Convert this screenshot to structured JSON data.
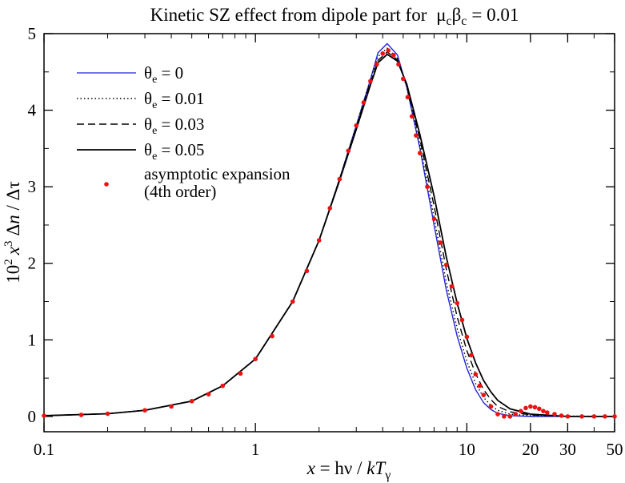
{
  "chart_data": {
    "type": "line",
    "title": "Kinetic SZ effect from dipole part for  μᴄβᴄ = 0.01",
    "title_parts": {
      "main": "Kinetic SZ effect from dipole part for",
      "mu": "μ",
      "beta": "β",
      "sub": "c",
      "rhs": "= 0.01"
    },
    "xlabel": "x = hν / kTγ",
    "xlabel_parts": {
      "x": "x",
      "eq": " = hν / ",
      "k": "k",
      "T": "T",
      "sub": "γ"
    },
    "ylabel": "10² x³ Δn / Δτ",
    "ylabel_parts": {
      "base": "10",
      "sup1": "2",
      "x": "x",
      "sup2": "3",
      "dn": "Δ",
      "n": "n",
      "rest": " / Δτ"
    },
    "x_scale": "log",
    "xlim": [
      0.1,
      50
    ],
    "ylim": [
      -0.2,
      5
    ],
    "x_ticks": [
      {
        "value": 0.1,
        "label": "0.1"
      },
      {
        "value": 1,
        "label": "1"
      },
      {
        "value": 10,
        "label": "10"
      },
      {
        "value": 20,
        "label": "20"
      },
      {
        "value": 30,
        "label": "30"
      },
      {
        "value": 50,
        "label": "50"
      }
    ],
    "y_ticks": [
      {
        "value": 0,
        "label": "0"
      },
      {
        "value": 1,
        "label": "1"
      },
      {
        "value": 2,
        "label": "2"
      },
      {
        "value": 3,
        "label": "3"
      },
      {
        "value": 4,
        "label": "4"
      },
      {
        "value": 5,
        "label": "5"
      }
    ],
    "grid": false,
    "legend_position": "top-left",
    "series": [
      {
        "label": "θe = 0",
        "label_parts": {
          "sym": "θ",
          "sub": "e",
          "rhs": " = 0"
        },
        "style": "solid",
        "color": "#2222dd",
        "points": [
          [
            0.1,
            0.01
          ],
          [
            0.2,
            0.035
          ],
          [
            0.3,
            0.08
          ],
          [
            0.5,
            0.2
          ],
          [
            0.7,
            0.4
          ],
          [
            1,
            0.75
          ],
          [
            1.5,
            1.5
          ],
          [
            2,
            2.3
          ],
          [
            2.5,
            3.1
          ],
          [
            3,
            3.8
          ],
          [
            3.5,
            4.4
          ],
          [
            3.8,
            4.75
          ],
          [
            4.2,
            4.87
          ],
          [
            4.7,
            4.72
          ],
          [
            5.2,
            4.3
          ],
          [
            6,
            3.5
          ],
          [
            7,
            2.5
          ],
          [
            8,
            1.65
          ],
          [
            9,
            1.05
          ],
          [
            10,
            0.63
          ],
          [
            11,
            0.35
          ],
          [
            12,
            0.18
          ],
          [
            13,
            0.09
          ],
          [
            14,
            0.04
          ],
          [
            16,
            0.01
          ],
          [
            20,
            0.0
          ],
          [
            50,
            0.0
          ]
        ]
      },
      {
        "label": "θe = 0.01",
        "label_parts": {
          "sym": "θ",
          "sub": "e",
          "rhs": " = 0.01"
        },
        "style": "dotted",
        "color": "#000000",
        "points": [
          [
            0.1,
            0.01
          ],
          [
            0.2,
            0.035
          ],
          [
            0.3,
            0.08
          ],
          [
            0.5,
            0.2
          ],
          [
            0.7,
            0.4
          ],
          [
            1,
            0.75
          ],
          [
            1.5,
            1.5
          ],
          [
            2,
            2.3
          ],
          [
            2.5,
            3.1
          ],
          [
            3,
            3.8
          ],
          [
            3.5,
            4.4
          ],
          [
            3.8,
            4.7
          ],
          [
            4.2,
            4.81
          ],
          [
            4.7,
            4.68
          ],
          [
            5.2,
            4.3
          ],
          [
            6,
            3.55
          ],
          [
            7,
            2.6
          ],
          [
            8,
            1.75
          ],
          [
            9,
            1.15
          ],
          [
            10,
            0.72
          ],
          [
            11,
            0.43
          ],
          [
            12,
            0.25
          ],
          [
            13,
            0.14
          ],
          [
            14,
            0.08
          ],
          [
            16,
            0.03
          ],
          [
            20,
            0.01
          ],
          [
            50,
            0.0
          ]
        ]
      },
      {
        "label": "θe = 0.03",
        "label_parts": {
          "sym": "θ",
          "sub": "e",
          "rhs": " = 0.03"
        },
        "style": "dashed",
        "color": "#000000",
        "points": [
          [
            0.1,
            0.01
          ],
          [
            0.2,
            0.035
          ],
          [
            0.3,
            0.08
          ],
          [
            0.5,
            0.2
          ],
          [
            0.7,
            0.4
          ],
          [
            1,
            0.75
          ],
          [
            1.5,
            1.5
          ],
          [
            2,
            2.3
          ],
          [
            2.5,
            3.1
          ],
          [
            3,
            3.78
          ],
          [
            3.5,
            4.36
          ],
          [
            3.8,
            4.65
          ],
          [
            4.2,
            4.76
          ],
          [
            4.7,
            4.66
          ],
          [
            5.2,
            4.32
          ],
          [
            6,
            3.62
          ],
          [
            7,
            2.75
          ],
          [
            8,
            1.92
          ],
          [
            9,
            1.3
          ],
          [
            10,
            0.86
          ],
          [
            11,
            0.56
          ],
          [
            12,
            0.35
          ],
          [
            13,
            0.22
          ],
          [
            14,
            0.13
          ],
          [
            16,
            0.06
          ],
          [
            20,
            0.02
          ],
          [
            30,
            0.0
          ],
          [
            50,
            0.0
          ]
        ]
      },
      {
        "label": "θe = 0.05",
        "label_parts": {
          "sym": "θ",
          "sub": "e",
          "rhs": " = 0.05"
        },
        "style": "solid",
        "color": "#000000",
        "points": [
          [
            0.1,
            0.01
          ],
          [
            0.2,
            0.035
          ],
          [
            0.3,
            0.08
          ],
          [
            0.5,
            0.2
          ],
          [
            0.7,
            0.4
          ],
          [
            1,
            0.75
          ],
          [
            1.5,
            1.5
          ],
          [
            2,
            2.3
          ],
          [
            2.5,
            3.08
          ],
          [
            3,
            3.75
          ],
          [
            3.5,
            4.33
          ],
          [
            3.8,
            4.62
          ],
          [
            4.2,
            4.73
          ],
          [
            4.7,
            4.64
          ],
          [
            5.2,
            4.34
          ],
          [
            6,
            3.68
          ],
          [
            7,
            2.88
          ],
          [
            8,
            2.08
          ],
          [
            9,
            1.48
          ],
          [
            10,
            1.02
          ],
          [
            11,
            0.7
          ],
          [
            12,
            0.47
          ],
          [
            13,
            0.32
          ],
          [
            14,
            0.21
          ],
          [
            16,
            0.1
          ],
          [
            20,
            0.03
          ],
          [
            30,
            0.0
          ],
          [
            50,
            0.0
          ]
        ]
      },
      {
        "label": "asymptotic expansion (4th order)",
        "label_lines": [
          "asymptotic expansion",
          "(4th order)"
        ],
        "style": "markers",
        "color": "#ee1111",
        "points": [
          [
            0.1,
            0.01
          ],
          [
            0.15,
            0.02
          ],
          [
            0.2,
            0.035
          ],
          [
            0.3,
            0.08
          ],
          [
            0.4,
            0.13
          ],
          [
            0.5,
            0.2
          ],
          [
            0.6,
            0.29
          ],
          [
            0.7,
            0.4
          ],
          [
            0.85,
            0.56
          ],
          [
            1,
            0.75
          ],
          [
            1.2,
            1.05
          ],
          [
            1.5,
            1.5
          ],
          [
            1.75,
            1.9
          ],
          [
            2,
            2.3
          ],
          [
            2.25,
            2.72
          ],
          [
            2.5,
            3.1
          ],
          [
            2.75,
            3.47
          ],
          [
            3,
            3.8
          ],
          [
            3.25,
            4.1
          ],
          [
            3.5,
            4.38
          ],
          [
            3.75,
            4.6
          ],
          [
            4,
            4.74
          ],
          [
            4.25,
            4.78
          ],
          [
            4.5,
            4.72
          ],
          [
            4.75,
            4.6
          ],
          [
            5,
            4.41
          ],
          [
            5.25,
            4.17
          ],
          [
            5.5,
            3.92
          ],
          [
            5.75,
            3.67
          ],
          [
            6,
            3.44
          ],
          [
            6.5,
            3.0
          ],
          [
            7,
            2.58
          ],
          [
            7.5,
            2.27
          ],
          [
            8,
            1.98
          ],
          [
            8.5,
            1.7
          ],
          [
            9,
            1.48
          ],
          [
            9.5,
            1.26
          ],
          [
            10,
            1.04
          ],
          [
            10.5,
            0.8
          ],
          [
            11,
            0.55
          ],
          [
            11.5,
            0.4
          ],
          [
            12,
            0.28
          ],
          [
            13,
            0.13
          ],
          [
            14,
            0.03
          ],
          [
            15,
            0.0
          ],
          [
            16,
            0.0
          ],
          [
            17,
            0.03
          ],
          [
            18,
            0.07
          ],
          [
            19,
            0.11
          ],
          [
            20,
            0.13
          ],
          [
            21,
            0.12
          ],
          [
            22,
            0.1
          ],
          [
            23,
            0.07
          ],
          [
            24,
            0.05
          ],
          [
            26,
            0.03
          ],
          [
            28,
            0.01
          ],
          [
            30,
            0.0
          ],
          [
            35,
            0.0
          ],
          [
            40,
            0.0
          ],
          [
            45,
            0.0
          ],
          [
            50,
            0.0
          ]
        ]
      }
    ]
  }
}
